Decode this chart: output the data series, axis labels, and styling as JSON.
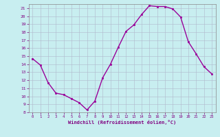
{
  "x": [
    0,
    1,
    2,
    3,
    4,
    5,
    6,
    7,
    8,
    9,
    10,
    11,
    12,
    13,
    14,
    15,
    16,
    17,
    18,
    19,
    20,
    21,
    22,
    23
  ],
  "y": [
    14.7,
    13.9,
    11.7,
    10.4,
    10.2,
    9.7,
    9.2,
    8.3,
    9.4,
    12.3,
    14.0,
    16.1,
    18.1,
    18.9,
    20.2,
    21.3,
    21.2,
    21.2,
    20.9,
    19.9,
    16.8,
    15.3,
    13.7,
    12.8
  ],
  "line_color": "#990099",
  "marker": "s",
  "marker_size": 2,
  "line_width": 1.0,
  "bg_color": "#c8eef0",
  "grid_color": "#b0b8cc",
  "xlabel": "Windchill (Refroidissement éolien,°C)",
  "xlabel_color": "#800080",
  "tick_color": "#800080",
  "ylim": [
    8,
    21.5
  ],
  "yticks": [
    8,
    9,
    10,
    11,
    12,
    13,
    14,
    15,
    16,
    17,
    18,
    19,
    20,
    21
  ],
  "xlim": [
    -0.5,
    23.5
  ],
  "xticks": [
    0,
    1,
    2,
    3,
    4,
    5,
    6,
    7,
    8,
    9,
    10,
    11,
    12,
    13,
    14,
    15,
    16,
    17,
    18,
    19,
    20,
    21,
    22,
    23
  ]
}
